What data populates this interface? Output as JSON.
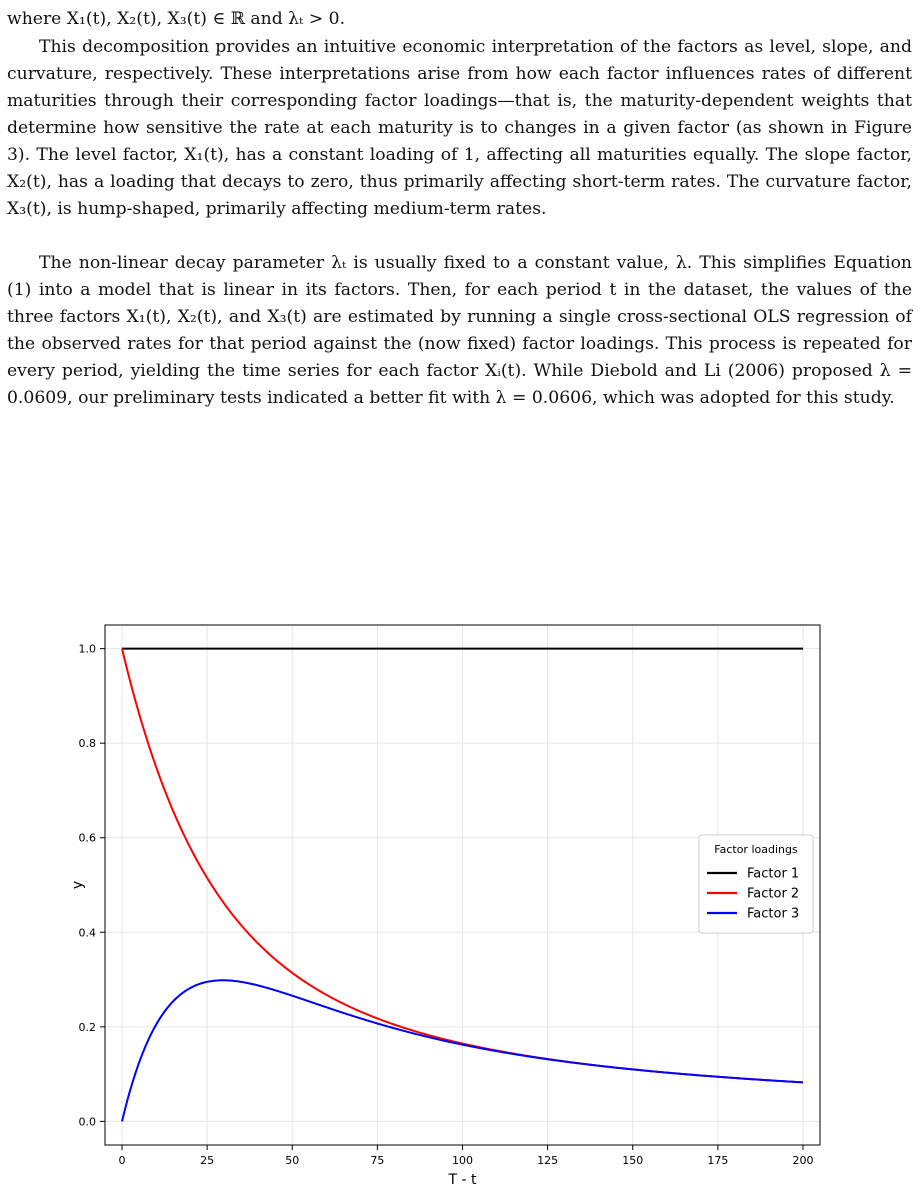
{
  "paper": {
    "line0": "where X₁(t), X₂(t), X₃(t) ∈ ℝ and λₜ > 0.",
    "para1": "This decomposition provides an intuitive economic interpretation of the factors as level, slope, and curvature, respectively. These interpretations arise from how each factor influences rates of different maturities through their corresponding factor loadings—that is, the maturity-dependent weights that determine how sensitive the rate at each maturity is to changes in a given factor (as shown in Figure 3). The level factor, X₁(t), has a constant loading of 1, affecting all maturities equally. The slope factor, X₂(t), has a loading that decays to zero, thus primarily affecting short-term rates. The curvature factor, X₃(t), is hump-shaped, primarily affecting medium-term rates.",
    "para2": "The non-linear decay parameter λₜ is usually fixed to a constant value, λ. This simplifies Equation (1) into a model that is linear in its factors. Then, for each period t in the dataset, the values of the three factors X₁(t), X₂(t), and X₃(t) are estimated by running a single cross-sectional OLS regression of the observed rates for that period against the (now fixed) factor loadings. This process is repeated for every period, yielding the time series for each factor Xᵢ(t). While Diebold and Li (2006) proposed λ = 0.0609, our preliminary tests indicated a better fit with λ = 0.0606, which was adopted for this study."
  },
  "chart_data": {
    "type": "line",
    "title": "",
    "xlabel": "T - t",
    "ylabel": "y",
    "xlim": [
      -5,
      205
    ],
    "ylim": [
      -0.05,
      1.05
    ],
    "x_ticks": [
      0,
      25,
      50,
      75,
      100,
      125,
      150,
      175,
      200
    ],
    "y_ticks": [
      0.0,
      0.2,
      0.4,
      0.6,
      0.8,
      1.0
    ],
    "x_tick_labels": [
      "0",
      "25",
      "50",
      "75",
      "100",
      "125",
      "150",
      "175",
      "200"
    ],
    "y_tick_labels": [
      "0.0",
      "0.2",
      "0.4",
      "0.6",
      "0.8",
      "1.0"
    ],
    "grid": true,
    "legend": {
      "title": "Factor loadings",
      "placement": "right"
    },
    "lambda": 0.0606,
    "series": [
      {
        "name": "Factor 1",
        "color": "#000000",
        "formula": "level",
        "x": [
          0,
          25,
          50,
          75,
          100,
          125,
          150,
          175,
          200
        ],
        "values": [
          1.0,
          1.0,
          1.0,
          1.0,
          1.0,
          1.0,
          1.0,
          1.0,
          1.0
        ]
      },
      {
        "name": "Factor 2",
        "color": "#ff0000",
        "formula": "slope",
        "x": [
          0,
          25,
          50,
          75,
          100,
          125,
          150,
          175,
          200
        ],
        "values": [
          1.0,
          0.51,
          0.31,
          0.22,
          0.165,
          0.132,
          0.11,
          0.094,
          0.083
        ]
      },
      {
        "name": "Factor 3",
        "color": "#0000ff",
        "formula": "curvature",
        "x": [
          0,
          25,
          50,
          75,
          100,
          125,
          150,
          175,
          200
        ],
        "values": [
          0.0,
          0.29,
          0.26,
          0.21,
          0.163,
          0.132,
          0.11,
          0.094,
          0.082
        ]
      }
    ]
  }
}
